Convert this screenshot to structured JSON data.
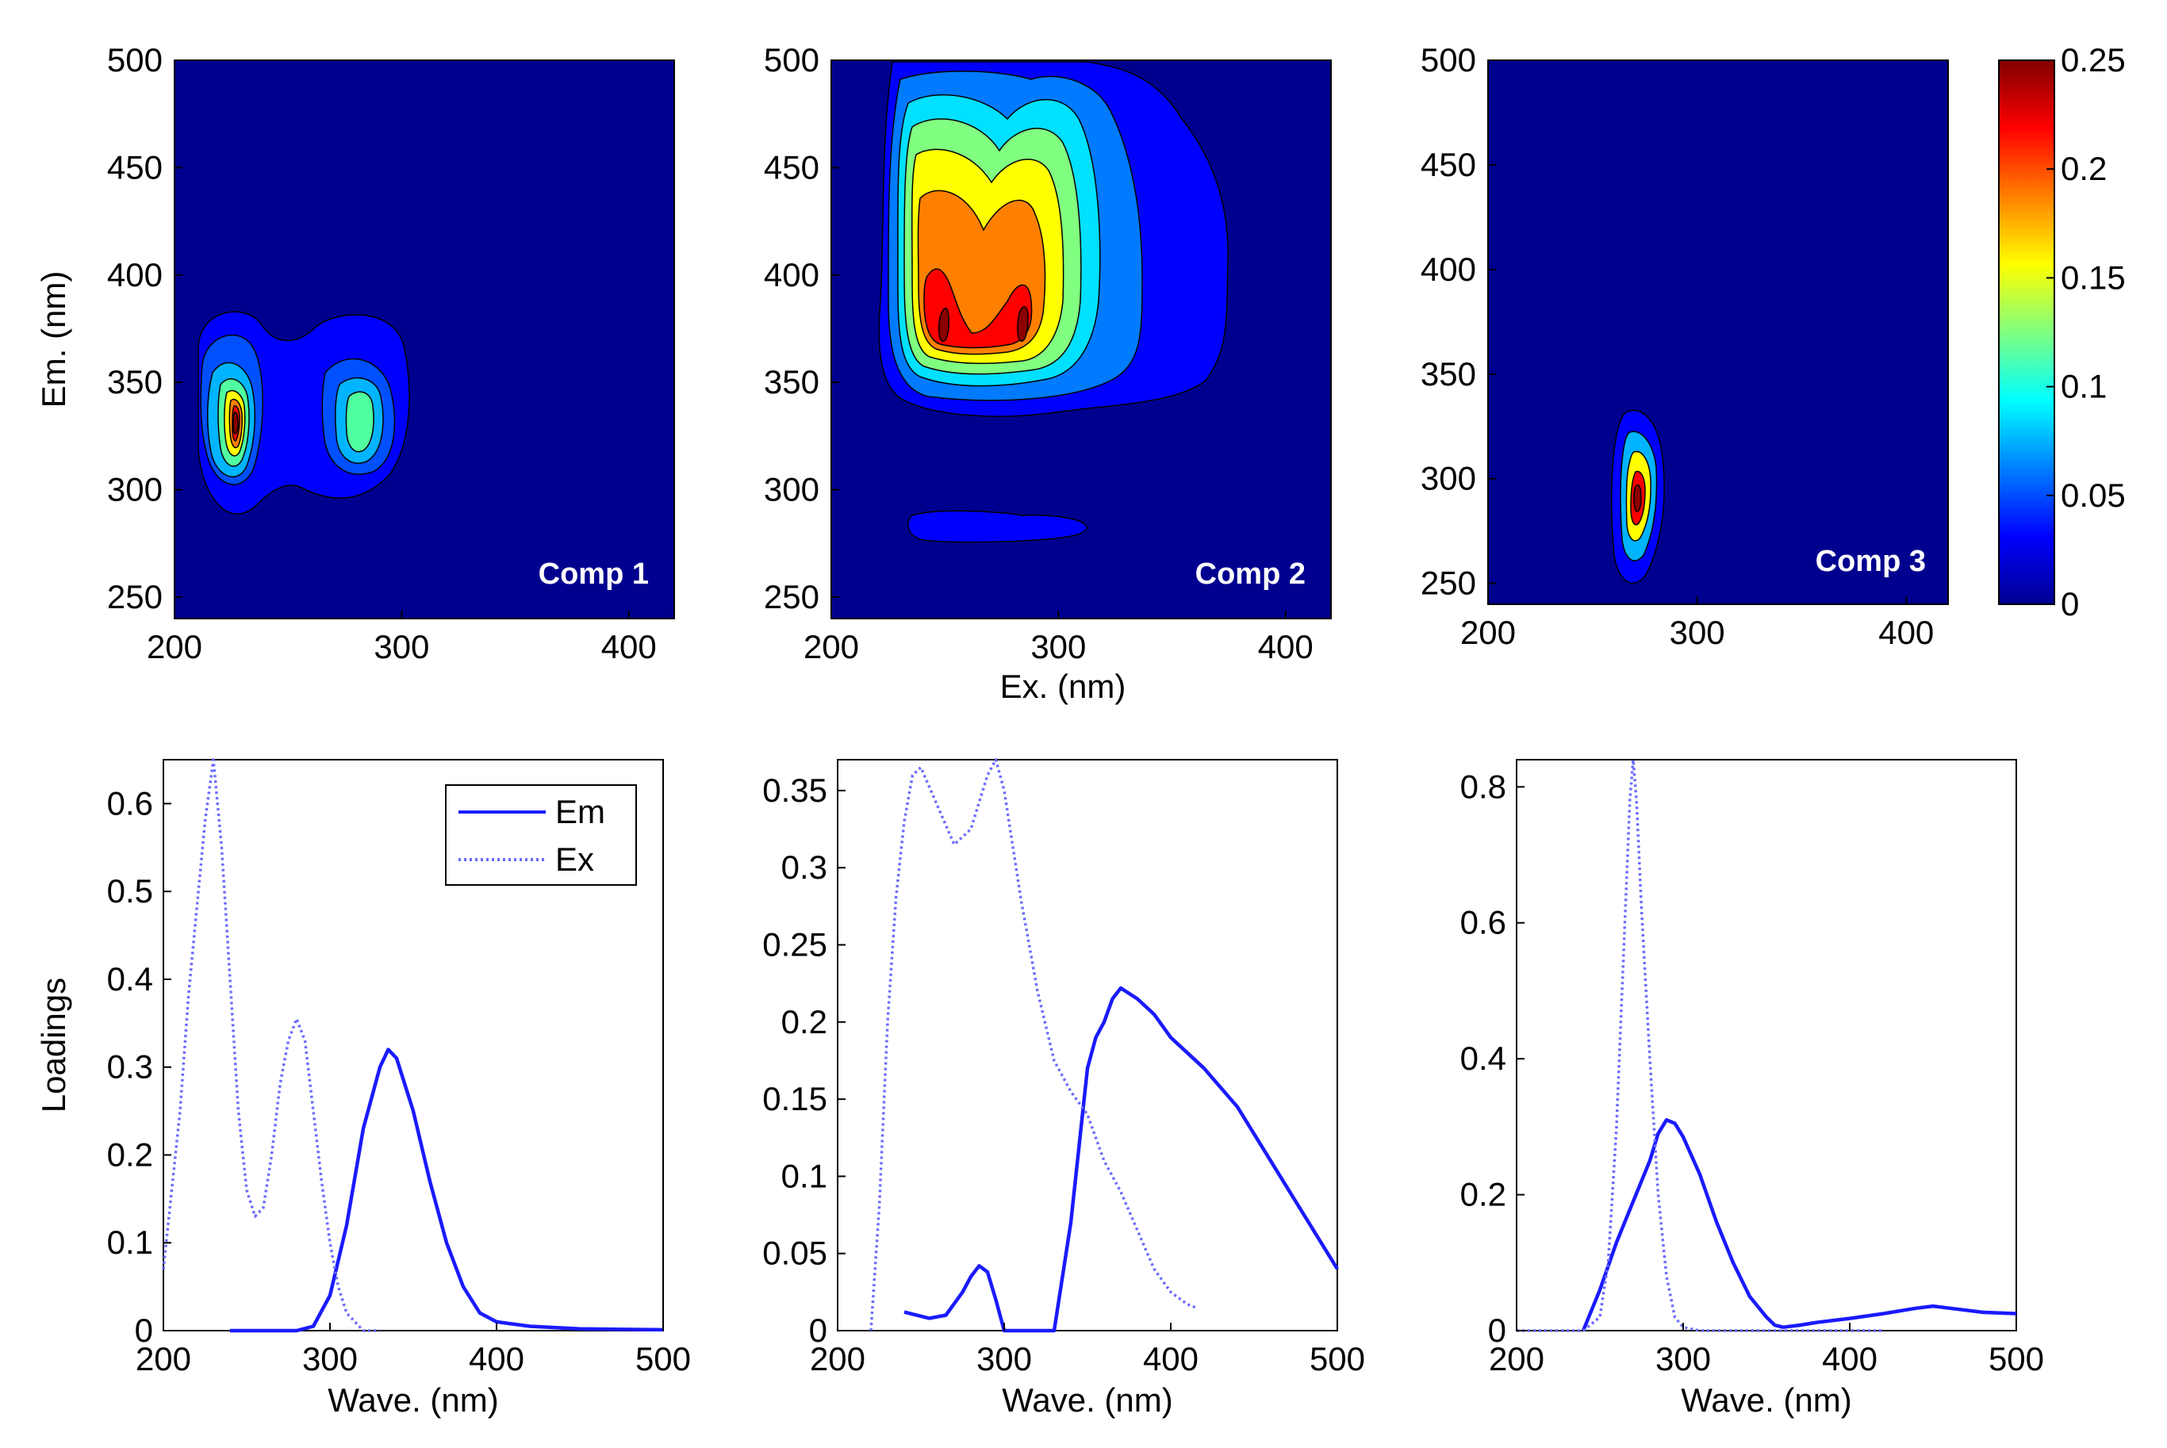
{
  "chart_data": [
    {
      "type": "contour",
      "panel": "top-left",
      "title": "Comp 1",
      "xlabel": "",
      "ylabel": "Em. (nm)",
      "xlim": [
        200,
        420
      ],
      "ylim": [
        240,
        500
      ],
      "xticks": [
        "200",
        "300",
        "400"
      ],
      "yticks": [
        "250",
        "300",
        "350",
        "400",
        "450",
        "500"
      ],
      "peaks": [
        {
          "ex": 230,
          "em": 335,
          "value": 0.25
        },
        {
          "ex": 280,
          "em": 333,
          "value": 0.12
        }
      ]
    },
    {
      "type": "contour",
      "panel": "top-middle",
      "title": "Comp 2",
      "xlabel": "Ex. (nm)",
      "ylabel": "",
      "xlim": [
        200,
        420
      ],
      "ylim": [
        240,
        500
      ],
      "xticks": [
        "200",
        "300",
        "400"
      ],
      "yticks": [
        "250",
        "300",
        "350",
        "400",
        "450",
        "500"
      ],
      "peaks": [
        {
          "ex": 250,
          "em": 370,
          "value": 0.24
        },
        {
          "ex": 290,
          "em": 370,
          "value": 0.24
        }
      ]
    },
    {
      "type": "contour",
      "panel": "top-right",
      "title": "Comp 3",
      "xlabel": "",
      "ylabel": "",
      "xlim": [
        200,
        420
      ],
      "ylim": [
        240,
        500
      ],
      "xticks": [
        "200",
        "300",
        "400"
      ],
      "yticks": [
        "250",
        "300",
        "350",
        "400",
        "450",
        "500"
      ],
      "peaks": [
        {
          "ex": 270,
          "em": 290,
          "value": 0.25
        }
      ]
    },
    {
      "type": "colorbar",
      "min": 0,
      "max": 0.25,
      "ticks": [
        "0",
        "0.05",
        "0.1",
        "0.15",
        "0.2",
        "0.25"
      ]
    },
    {
      "type": "line",
      "panel": "bottom-left",
      "xlabel": "Wave. (nm)",
      "ylabel": "Loadings",
      "xlim": [
        200,
        500
      ],
      "ylim": [
        0,
        0.65
      ],
      "xticks": [
        "200",
        "300",
        "400",
        "500"
      ],
      "yticks": [
        "0",
        "0.1",
        "0.2",
        "0.3",
        "0.4",
        "0.5",
        "0.6"
      ],
      "legend": {
        "position": "top-right",
        "entries": [
          "Em",
          "Ex"
        ]
      },
      "series": [
        {
          "name": "Em",
          "style": "solid",
          "x": [
            240,
            260,
            280,
            290,
            300,
            310,
            320,
            330,
            335,
            340,
            350,
            360,
            370,
            380,
            390,
            400,
            420,
            450,
            500
          ],
          "y": [
            0,
            0,
            0,
            0.005,
            0.04,
            0.12,
            0.23,
            0.3,
            0.32,
            0.31,
            0.25,
            0.17,
            0.1,
            0.05,
            0.02,
            0.01,
            0.005,
            0.002,
            0.001
          ]
        },
        {
          "name": "Ex",
          "style": "dotted",
          "x": [
            200,
            210,
            215,
            220,
            225,
            230,
            235,
            240,
            245,
            250,
            255,
            260,
            265,
            270,
            275,
            280,
            285,
            290,
            295,
            300,
            305,
            310,
            315,
            320,
            330
          ],
          "y": [
            0.07,
            0.25,
            0.38,
            0.48,
            0.58,
            0.65,
            0.55,
            0.4,
            0.25,
            0.16,
            0.13,
            0.14,
            0.2,
            0.28,
            0.33,
            0.355,
            0.33,
            0.25,
            0.17,
            0.1,
            0.05,
            0.02,
            0.01,
            0,
            0
          ]
        }
      ]
    },
    {
      "type": "line",
      "panel": "bottom-middle",
      "xlabel": "Wave. (nm)",
      "ylabel": "",
      "xlim": [
        200,
        500
      ],
      "ylim": [
        0,
        0.37
      ],
      "xticks": [
        "200",
        "300",
        "400",
        "500"
      ],
      "yticks": [
        "0",
        "0.05",
        "0.1",
        "0.15",
        "0.2",
        "0.25",
        "0.3",
        "0.35"
      ],
      "series": [
        {
          "name": "Em",
          "style": "solid",
          "x": [
            240,
            255,
            265,
            275,
            280,
            285,
            290,
            295,
            300,
            310,
            320,
            330,
            340,
            345,
            350,
            355,
            360,
            365,
            370,
            380,
            390,
            400,
            420,
            440,
            460,
            480,
            500
          ],
          "y": [
            0.012,
            0.008,
            0.01,
            0.025,
            0.035,
            0.042,
            0.038,
            0.02,
            0.0,
            0,
            0,
            0.0,
            0.07,
            0.12,
            0.17,
            0.19,
            0.2,
            0.215,
            0.222,
            0.215,
            0.205,
            0.19,
            0.17,
            0.145,
            0.11,
            0.075,
            0.04
          ]
        },
        {
          "name": "Ex",
          "style": "dotted",
          "x": [
            220,
            225,
            230,
            235,
            240,
            245,
            250,
            260,
            270,
            280,
            290,
            295,
            300,
            310,
            320,
            330,
            340,
            350,
            360,
            370,
            380,
            390,
            400,
            410,
            415
          ],
          "y": [
            0,
            0.08,
            0.2,
            0.28,
            0.33,
            0.36,
            0.365,
            0.34,
            0.315,
            0.325,
            0.36,
            0.37,
            0.35,
            0.28,
            0.22,
            0.175,
            0.155,
            0.14,
            0.11,
            0.09,
            0.065,
            0.04,
            0.025,
            0.017,
            0.015
          ]
        }
      ]
    },
    {
      "type": "line",
      "panel": "bottom-right",
      "xlabel": "Wave. (nm)",
      "ylabel": "",
      "xlim": [
        200,
        500
      ],
      "ylim": [
        0,
        0.84
      ],
      "xticks": [
        "200",
        "300",
        "400",
        "500"
      ],
      "yticks": [
        "0",
        "0.2",
        "0.4",
        "0.6",
        "0.8"
      ],
      "series": [
        {
          "name": "Em",
          "style": "solid",
          "x": [
            240,
            250,
            260,
            270,
            280,
            285,
            290,
            295,
            300,
            310,
            320,
            330,
            340,
            350,
            355,
            360,
            370,
            380,
            400,
            420,
            440,
            450,
            460,
            480,
            500
          ],
          "y": [
            0,
            0.06,
            0.13,
            0.19,
            0.25,
            0.29,
            0.31,
            0.305,
            0.285,
            0.23,
            0.16,
            0.1,
            0.05,
            0.02,
            0.008,
            0.005,
            0.008,
            0.012,
            0.018,
            0.025,
            0.033,
            0.036,
            0.033,
            0.027,
            0.025
          ]
        },
        {
          "name": "Ex",
          "style": "dotted",
          "x": [
            200,
            240,
            250,
            255,
            260,
            265,
            268,
            270,
            272,
            275,
            280,
            285,
            290,
            295,
            300,
            310,
            420
          ],
          "y": [
            0,
            0,
            0.02,
            0.1,
            0.3,
            0.6,
            0.78,
            0.84,
            0.78,
            0.62,
            0.4,
            0.2,
            0.08,
            0.02,
            0.005,
            0,
            0
          ]
        }
      ]
    }
  ]
}
